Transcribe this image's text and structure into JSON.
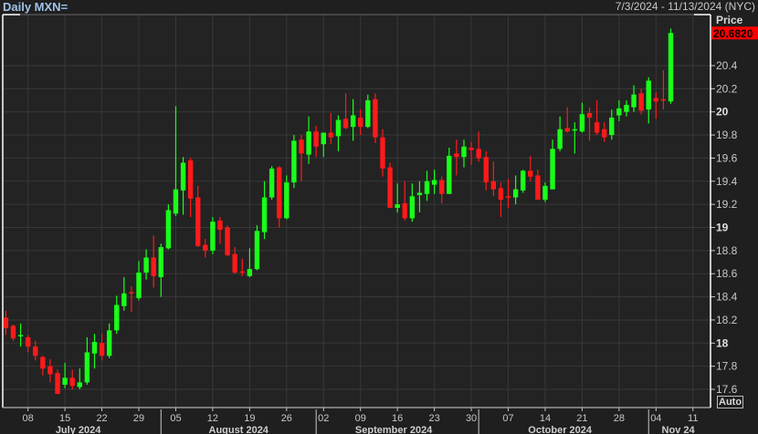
{
  "header": {
    "title": "Daily MXN=",
    "range": "7/3/2024 - 11/13/2024 (NYC)",
    "price_label": "Price",
    "auto_button": "Auto"
  },
  "chart_data": {
    "type": "candlestick",
    "title": "Daily MXN=",
    "ylabel": "Price",
    "ylim": [
      17.5,
      20.8
    ],
    "grid": true,
    "up_color": "#1aff1a",
    "down_color": "#ff1a1a",
    "last_price": "20.6820",
    "last_price_color": "#ff0000",
    "y_ticks": [
      {
        "value": 20.4,
        "label": "20.4"
      },
      {
        "value": 20.2,
        "label": "20.2"
      },
      {
        "value": 20,
        "label": "20",
        "bold": true
      },
      {
        "value": 19.8,
        "label": "19.8"
      },
      {
        "value": 19.6,
        "label": "19.6"
      },
      {
        "value": 19.4,
        "label": "19.4"
      },
      {
        "value": 19.2,
        "label": "19.2"
      },
      {
        "value": 19,
        "label": "19",
        "bold": true
      },
      {
        "value": 18.8,
        "label": "18.8"
      },
      {
        "value": 18.6,
        "label": "18.6"
      },
      {
        "value": 18.4,
        "label": "18.4"
      },
      {
        "value": 18.2,
        "label": "18.2"
      },
      {
        "value": 18,
        "label": "18",
        "bold": true
      },
      {
        "value": 17.8,
        "label": "17.8"
      },
      {
        "value": 17.6,
        "label": "17.6"
      }
    ],
    "x_ticks": [
      {
        "date": "2024-07-08",
        "label": "08"
      },
      {
        "date": "2024-07-15",
        "label": "15"
      },
      {
        "date": "2024-07-22",
        "label": "22"
      },
      {
        "date": "2024-07-29",
        "label": "29"
      },
      {
        "date": "2024-08-05",
        "label": "05"
      },
      {
        "date": "2024-08-12",
        "label": "12"
      },
      {
        "date": "2024-08-19",
        "label": "19"
      },
      {
        "date": "2024-08-26",
        "label": "26"
      },
      {
        "date": "2024-09-02",
        "label": "02"
      },
      {
        "date": "2024-09-09",
        "label": "09"
      },
      {
        "date": "2024-09-16",
        "label": "16"
      },
      {
        "date": "2024-09-23",
        "label": "23"
      },
      {
        "date": "2024-09-30",
        "label": "30"
      },
      {
        "date": "2024-10-07",
        "label": "07"
      },
      {
        "date": "2024-10-14",
        "label": "14"
      },
      {
        "date": "2024-10-21",
        "label": "21"
      },
      {
        "date": "2024-10-28",
        "label": "28"
      },
      {
        "date": "2024-11-04",
        "label": "04"
      },
      {
        "date": "2024-11-11",
        "label": "11"
      }
    ],
    "months": [
      {
        "start": "2024-07-01",
        "end": "2024-07-31",
        "label": "July 2024"
      },
      {
        "start": "2024-08-01",
        "end": "2024-08-31",
        "label": "August 2024"
      },
      {
        "start": "2024-09-01",
        "end": "2024-09-30",
        "label": "September 2024"
      },
      {
        "start": "2024-10-01",
        "end": "2024-10-31",
        "label": "October 2024"
      },
      {
        "start": "2024-11-01",
        "end": "2024-11-13",
        "label": "Nov 24"
      }
    ],
    "first_date": "2024-07-03",
    "ohlc_fields": [
      "open",
      "high",
      "low",
      "close"
    ],
    "candles": [
      [
        18.22,
        18.28,
        18.07,
        18.13
      ],
      [
        18.15,
        18.16,
        18.02,
        18.04
      ],
      [
        18.06,
        18.17,
        17.97,
        18.07
      ],
      [
        18.05,
        18.07,
        17.92,
        17.97
      ],
      [
        17.97,
        18.02,
        17.85,
        17.89
      ],
      [
        17.88,
        17.89,
        17.72,
        17.78
      ],
      [
        17.8,
        17.86,
        17.66,
        17.73
      ],
      [
        17.74,
        17.77,
        17.56,
        17.56
      ],
      [
        17.64,
        17.83,
        17.61,
        17.7
      ],
      [
        17.7,
        17.77,
        17.6,
        17.63
      ],
      [
        17.62,
        17.78,
        17.6,
        17.66
      ],
      [
        17.66,
        18.05,
        17.64,
        17.92
      ],
      [
        17.91,
        18.08,
        17.78,
        18.01
      ],
      [
        18.0,
        18.08,
        17.85,
        17.89
      ],
      [
        17.89,
        18.17,
        17.87,
        18.11
      ],
      [
        18.11,
        18.41,
        18.08,
        18.33
      ],
      [
        18.32,
        18.57,
        18.28,
        18.43
      ],
      [
        18.44,
        18.49,
        18.27,
        18.43
      ],
      [
        18.39,
        18.71,
        18.37,
        18.61
      ],
      [
        18.61,
        18.81,
        18.55,
        18.74
      ],
      [
        18.74,
        18.93,
        18.48,
        18.58
      ],
      [
        18.57,
        18.86,
        18.4,
        18.83
      ],
      [
        18.82,
        19.2,
        18.81,
        19.15
      ],
      [
        19.12,
        20.05,
        19.1,
        19.33
      ],
      [
        19.32,
        19.61,
        19.11,
        19.56
      ],
      [
        19.58,
        19.6,
        19.09,
        19.25
      ],
      [
        19.26,
        19.36,
        18.83,
        18.84
      ],
      [
        18.85,
        18.9,
        18.74,
        18.8
      ],
      [
        18.8,
        19.09,
        18.77,
        19.05
      ],
      [
        19.06,
        19.09,
        18.86,
        18.98
      ],
      [
        19.0,
        19.02,
        18.75,
        18.76
      ],
      [
        18.77,
        18.83,
        18.6,
        18.61
      ],
      [
        18.62,
        18.73,
        18.58,
        18.61
      ],
      [
        18.58,
        18.82,
        18.57,
        18.64
      ],
      [
        18.64,
        19.02,
        18.63,
        18.97
      ],
      [
        18.96,
        19.4,
        18.9,
        19.26
      ],
      [
        19.26,
        19.53,
        19.24,
        19.51
      ],
      [
        19.52,
        19.53,
        19.0,
        19.08
      ],
      [
        19.08,
        19.45,
        19.07,
        19.39
      ],
      [
        19.39,
        19.8,
        19.34,
        19.75
      ],
      [
        19.76,
        19.8,
        19.4,
        19.64
      ],
      [
        19.63,
        19.96,
        19.55,
        19.83
      ],
      [
        19.83,
        19.88,
        19.61,
        19.7
      ],
      [
        19.72,
        19.82,
        19.61,
        19.82
      ],
      [
        19.82,
        19.99,
        19.72,
        19.78
      ],
      [
        19.79,
        19.97,
        19.66,
        19.93
      ],
      [
        19.94,
        20.16,
        19.85,
        19.86
      ],
      [
        19.87,
        20.11,
        19.75,
        19.97
      ],
      [
        19.95,
        20.02,
        19.8,
        19.87
      ],
      [
        19.87,
        20.15,
        19.86,
        20.1
      ],
      [
        20.11,
        20.16,
        19.73,
        19.78
      ],
      [
        19.78,
        19.85,
        19.44,
        19.51
      ],
      [
        19.52,
        19.56,
        19.17,
        19.17
      ],
      [
        19.17,
        19.38,
        19.13,
        19.2
      ],
      [
        19.21,
        19.4,
        19.06,
        19.08
      ],
      [
        19.08,
        19.38,
        19.05,
        19.27
      ],
      [
        19.28,
        19.4,
        19.13,
        19.3
      ],
      [
        19.29,
        19.49,
        19.23,
        19.4
      ],
      [
        19.37,
        19.5,
        19.29,
        19.41
      ],
      [
        19.41,
        19.44,
        19.21,
        19.29
      ],
      [
        19.29,
        19.69,
        19.29,
        19.62
      ],
      [
        19.64,
        19.76,
        19.45,
        19.61
      ],
      [
        19.61,
        19.76,
        19.52,
        19.7
      ],
      [
        19.69,
        19.74,
        19.54,
        19.67
      ],
      [
        19.68,
        19.83,
        19.57,
        19.6
      ],
      [
        19.61,
        19.66,
        19.32,
        19.39
      ],
      [
        19.4,
        19.57,
        19.27,
        19.33
      ],
      [
        19.34,
        19.39,
        19.09,
        19.24
      ],
      [
        19.27,
        19.42,
        19.17,
        19.26
      ],
      [
        19.26,
        19.45,
        19.2,
        19.33
      ],
      [
        19.32,
        19.5,
        19.3,
        19.49
      ],
      [
        19.49,
        19.62,
        19.4,
        19.44
      ],
      [
        19.45,
        19.5,
        19.24,
        19.24
      ],
      [
        19.24,
        19.39,
        19.22,
        19.36
      ],
      [
        19.33,
        19.76,
        19.33,
        19.68
      ],
      [
        19.68,
        19.96,
        19.66,
        19.85
      ],
      [
        19.86,
        20.04,
        19.82,
        19.83
      ],
      [
        19.84,
        19.91,
        19.64,
        19.85
      ],
      [
        19.83,
        20.08,
        19.82,
        19.98
      ],
      [
        19.99,
        20.04,
        19.75,
        19.95
      ],
      [
        19.91,
        20.1,
        19.8,
        19.82
      ],
      [
        19.85,
        19.91,
        19.74,
        19.78
      ],
      [
        19.8,
        20.02,
        19.76,
        19.95
      ],
      [
        19.97,
        20.1,
        19.92,
        20.03
      ],
      [
        20.0,
        20.1,
        19.96,
        20.06
      ],
      [
        20.04,
        20.23,
        20.0,
        20.15
      ],
      [
        20.16,
        20.2,
        19.98,
        20.01
      ],
      [
        20.02,
        20.3,
        19.9,
        20.27
      ],
      [
        20.12,
        20.17,
        19.94,
        20.09
      ],
      [
        20.11,
        20.36,
        20.02,
        20.1
      ],
      [
        20.09,
        20.72,
        20.07,
        20.682
      ]
    ]
  }
}
